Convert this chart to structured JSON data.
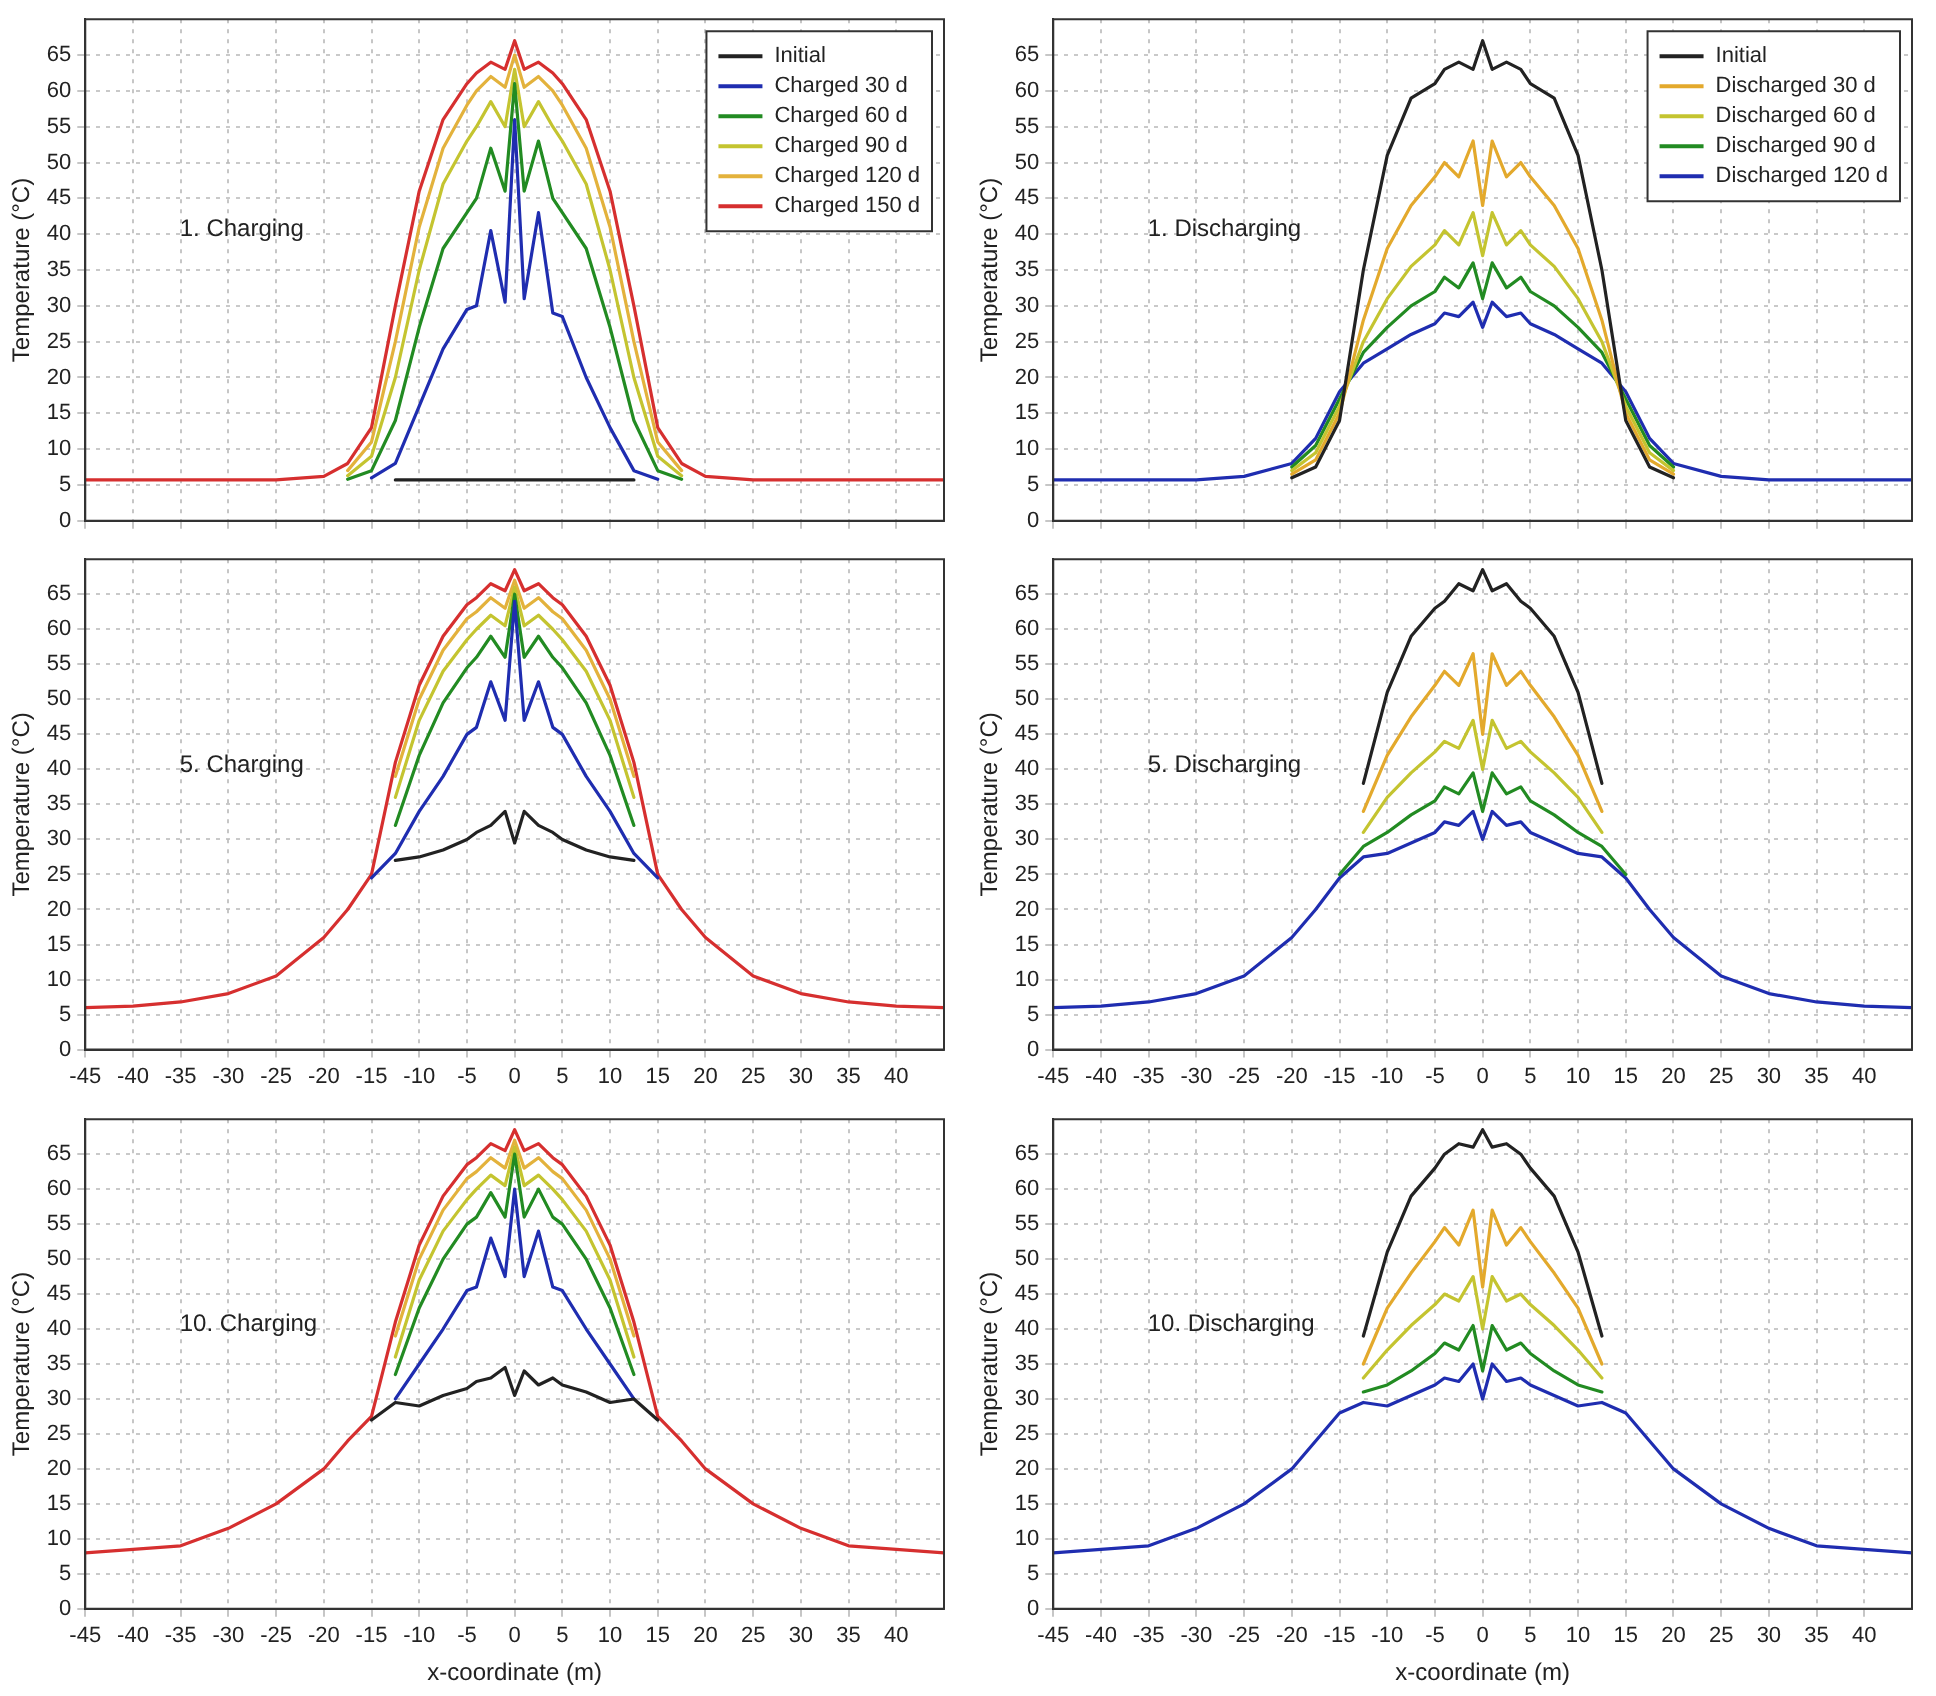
{
  "chart_data": [
    {
      "type": "line",
      "ylabel": "Temperature (°C)",
      "annotations": [
        "1. Charging"
      ],
      "xlim": [
        -45,
        45
      ],
      "ylim": [
        0,
        70
      ],
      "xticks": [
        -45,
        -40,
        -35,
        -30,
        -25,
        -20,
        -15,
        -10,
        -5,
        0,
        5,
        10,
        15,
        20,
        25,
        30,
        35,
        40
      ],
      "yticks": [
        0,
        5,
        10,
        15,
        20,
        25,
        30,
        35,
        40,
        45,
        50,
        55,
        60,
        65
      ],
      "grid": true,
      "legend": "top right",
      "tick_labels": "y",
      "x": [
        -45,
        -40,
        -35,
        -30,
        -25,
        -20,
        -17.5,
        -15,
        -12.5,
        -10,
        -7.5,
        -5,
        -4,
        -2.5,
        -1,
        0,
        1,
        2.5,
        4,
        5,
        7.5,
        10,
        12.5,
        15,
        17.5,
        20,
        25,
        30,
        35,
        40,
        45
      ],
      "series": [
        {
          "name": "Initial",
          "color": "#222222",
          "values": [
            null,
            null,
            null,
            null,
            null,
            null,
            null,
            null,
            5.7,
            5.7,
            5.7,
            5.7,
            5.7,
            5.7,
            5.7,
            5.7,
            5.7,
            5.7,
            5.7,
            5.7,
            5.7,
            5.7,
            5.7,
            null,
            null,
            null,
            null,
            null,
            null,
            null,
            null
          ]
        },
        {
          "name": "Charged 30 d",
          "color": "#1f2db0",
          "values": [
            null,
            null,
            null,
            null,
            null,
            null,
            null,
            6,
            8,
            16,
            24,
            29.5,
            30,
            40.5,
            30.5,
            56,
            31,
            43,
            29,
            28.5,
            20,
            13,
            7,
            5.8,
            null,
            null,
            null,
            null,
            null,
            null,
            null
          ]
        },
        {
          "name": "Charged 60 d",
          "color": "#228b22",
          "values": [
            null,
            null,
            null,
            null,
            null,
            null,
            5.8,
            7,
            14,
            27,
            38,
            43,
            45,
            52,
            46,
            61,
            46,
            53,
            45,
            43,
            38,
            27,
            14,
            7,
            5.8,
            null,
            null,
            null,
            null,
            null,
            null
          ]
        },
        {
          "name": "Charged 90 d",
          "color": "#c4c430",
          "values": [
            null,
            null,
            null,
            null,
            null,
            null,
            6.3,
            9,
            20,
            35,
            47,
            53,
            55,
            58.5,
            55,
            63,
            55,
            58.5,
            55,
            53,
            47,
            35,
            20,
            9,
            6.3,
            null,
            null,
            null,
            null,
            null,
            null
          ]
        },
        {
          "name": "Charged 120 d",
          "color": "#e3b23c",
          "values": [
            null,
            null,
            null,
            null,
            null,
            null,
            7,
            11,
            25,
            41,
            52,
            58,
            60,
            62,
            60.5,
            65,
            60.5,
            62,
            60,
            58,
            52,
            41,
            25,
            11,
            7,
            null,
            null,
            null,
            null,
            null,
            null
          ]
        },
        {
          "name": "Charged 150 d",
          "color": "#d62f2f",
          "values": [
            5.7,
            5.7,
            5.7,
            5.7,
            5.7,
            6.2,
            8,
            13,
            30,
            46,
            56,
            61,
            62.5,
            64,
            63,
            67,
            63,
            64,
            62.5,
            61,
            56,
            46,
            30,
            13,
            8,
            6.2,
            5.7,
            5.7,
            5.7,
            5.7,
            5.7
          ]
        }
      ]
    },
    {
      "type": "line",
      "ylabel": "Temperature (°C)",
      "annotations": [
        "1. Discharging"
      ],
      "xlim": [
        -45,
        45
      ],
      "ylim": [
        0,
        70
      ],
      "xticks": [
        -45,
        -40,
        -35,
        -30,
        -25,
        -20,
        -15,
        -10,
        -5,
        0,
        5,
        10,
        15,
        20,
        25,
        30,
        35,
        40
      ],
      "yticks": [
        0,
        5,
        10,
        15,
        20,
        25,
        30,
        35,
        40,
        45,
        50,
        55,
        60,
        65
      ],
      "grid": true,
      "legend": "top right",
      "tick_labels": "y",
      "x": [
        -45,
        -40,
        -35,
        -30,
        -25,
        -20,
        -17.5,
        -15,
        -12.5,
        -10,
        -7.5,
        -5,
        -4,
        -2.5,
        -1,
        0,
        1,
        2.5,
        4,
        5,
        7.5,
        10,
        12.5,
        15,
        17.5,
        20,
        25,
        30,
        35,
        40,
        45
      ],
      "series": [
        {
          "name": "Initial",
          "color": "#222222",
          "values": [
            null,
            null,
            null,
            null,
            null,
            6,
            7.5,
            14,
            35,
            51,
            59,
            61,
            63,
            64,
            63,
            67,
            63,
            64,
            63,
            61,
            59,
            51,
            35,
            14,
            7.5,
            6,
            null,
            null,
            null,
            null,
            null
          ]
        },
        {
          "name": "Discharged 30 d",
          "color": "#e3a92c",
          "values": [
            null,
            null,
            null,
            null,
            null,
            6.5,
            8.5,
            15,
            28,
            38,
            44,
            48,
            50,
            48,
            53,
            44,
            53,
            48,
            50,
            48,
            44,
            38,
            28,
            15,
            8.5,
            6.5,
            null,
            null,
            null,
            null,
            null
          ]
        },
        {
          "name": "Discharged 60 d",
          "color": "#c4c430",
          "values": [
            null,
            null,
            null,
            null,
            null,
            7,
            9.5,
            16,
            25,
            31,
            35.5,
            38.5,
            40.5,
            38.5,
            43,
            37,
            43,
            38.5,
            40.5,
            38.5,
            35.5,
            31,
            25,
            16,
            9.5,
            7,
            null,
            null,
            null,
            null,
            null
          ]
        },
        {
          "name": "Discharged 90 d",
          "color": "#228b22",
          "values": [
            null,
            null,
            null,
            null,
            null,
            7.5,
            10.5,
            17,
            23.5,
            27,
            30,
            32,
            34,
            32.5,
            36,
            31,
            36,
            32.5,
            34,
            32,
            30,
            27,
            23.5,
            17,
            10.5,
            7.5,
            null,
            null,
            null,
            null,
            null
          ]
        },
        {
          "name": "Discharged 120 d",
          "color": "#1f2db0",
          "values": [
            5.7,
            5.7,
            5.7,
            5.7,
            6.2,
            8,
            11.5,
            18,
            22,
            24,
            26,
            27.5,
            29,
            28.5,
            30.5,
            27,
            30.5,
            28.5,
            29,
            27.5,
            26,
            24,
            22,
            18,
            11.5,
            8,
            6.2,
            5.7,
            5.7,
            5.7,
            5.7
          ]
        }
      ]
    },
    {
      "type": "line",
      "ylabel": "Temperature (°C)",
      "annotations": [
        "5. Charging"
      ],
      "xlim": [
        -45,
        45
      ],
      "ylim": [
        0,
        70
      ],
      "xticks": [
        -45,
        -40,
        -35,
        -30,
        -25,
        -20,
        -15,
        -10,
        -5,
        0,
        5,
        10,
        15,
        20,
        25,
        30,
        35,
        40
      ],
      "yticks": [
        0,
        5,
        10,
        15,
        20,
        25,
        30,
        35,
        40,
        45,
        50,
        55,
        60,
        65
      ],
      "grid": true,
      "x": [
        -45,
        -40,
        -35,
        -30,
        -25,
        -20,
        -17.5,
        -15,
        -12.5,
        -10,
        -7.5,
        -5,
        -4,
        -2.5,
        -1,
        0,
        1,
        2.5,
        4,
        5,
        7.5,
        10,
        12.5,
        15,
        17.5,
        20,
        25,
        30,
        35,
        40,
        45
      ],
      "series": [
        {
          "color": "#222222",
          "values": [
            null,
            null,
            null,
            null,
            null,
            null,
            null,
            null,
            27,
            27.5,
            28.5,
            30,
            31,
            32,
            34,
            29.5,
            34,
            32,
            31,
            30,
            28.5,
            27.5,
            27,
            null,
            null,
            null,
            null,
            null,
            null,
            null,
            null
          ]
        },
        {
          "color": "#1f2db0",
          "values": [
            null,
            null,
            null,
            null,
            null,
            null,
            null,
            24.5,
            28,
            34,
            39,
            45,
            46,
            52.5,
            47,
            64,
            47,
            52.5,
            46,
            45,
            39,
            34,
            28,
            24.5,
            null,
            null,
            null,
            null,
            null,
            null,
            null
          ]
        },
        {
          "color": "#228b22",
          "values": [
            null,
            null,
            null,
            null,
            null,
            null,
            null,
            null,
            32,
            42,
            49.5,
            54.5,
            56,
            59,
            56,
            65,
            56,
            59,
            56,
            54.5,
            49.5,
            42,
            32,
            null,
            null,
            null,
            null,
            null,
            null,
            null,
            null
          ]
        },
        {
          "color": "#c4c430",
          "values": [
            null,
            null,
            null,
            null,
            null,
            null,
            null,
            null,
            36,
            47,
            54,
            58.5,
            60,
            62,
            60.5,
            66,
            60.5,
            62,
            60,
            58.5,
            54,
            47,
            36,
            null,
            null,
            null,
            null,
            null,
            null,
            null,
            null
          ]
        },
        {
          "color": "#e3b23c",
          "values": [
            null,
            null,
            null,
            null,
            null,
            null,
            null,
            null,
            39,
            50,
            57,
            61.5,
            62.5,
            64.5,
            63,
            67,
            63,
            64.5,
            62.5,
            61.5,
            57,
            50,
            39,
            null,
            null,
            null,
            null,
            null,
            null,
            null,
            null
          ]
        },
        {
          "color": "#d62f2f",
          "values": [
            6,
            6.2,
            6.8,
            8,
            10.5,
            16,
            20,
            25,
            41,
            52,
            59,
            63.5,
            64.5,
            66.5,
            65.5,
            68.5,
            65.5,
            66.5,
            64.5,
            63.5,
            59,
            52,
            41,
            25,
            20,
            16,
            10.5,
            8,
            6.8,
            6.2,
            6
          ]
        }
      ]
    },
    {
      "type": "line",
      "ylabel": "Temperature (°C)",
      "annotations": [
        "5. Discharging"
      ],
      "xlim": [
        -45,
        45
      ],
      "ylim": [
        0,
        70
      ],
      "xticks": [
        -45,
        -40,
        -35,
        -30,
        -25,
        -20,
        -15,
        -10,
        -5,
        0,
        5,
        10,
        15,
        20,
        25,
        30,
        35,
        40
      ],
      "yticks": [
        0,
        5,
        10,
        15,
        20,
        25,
        30,
        35,
        40,
        45,
        50,
        55,
        60,
        65
      ],
      "grid": true,
      "x": [
        -45,
        -40,
        -35,
        -30,
        -25,
        -20,
        -17.5,
        -15,
        -12.5,
        -10,
        -7.5,
        -5,
        -4,
        -2.5,
        -1,
        0,
        1,
        2.5,
        4,
        5,
        7.5,
        10,
        12.5,
        15,
        17.5,
        20,
        25,
        30,
        35,
        40,
        45
      ],
      "series": [
        {
          "color": "#222222",
          "values": [
            null,
            null,
            null,
            null,
            null,
            null,
            null,
            null,
            38,
            51,
            59,
            63,
            64,
            66.5,
            65.5,
            68.5,
            65.5,
            66.5,
            64,
            63,
            59,
            51,
            38,
            null,
            null,
            null,
            null,
            null,
            null,
            null,
            null
          ]
        },
        {
          "color": "#e3a92c",
          "values": [
            null,
            null,
            null,
            null,
            null,
            null,
            null,
            null,
            34,
            42,
            47.5,
            52,
            54,
            52,
            56.5,
            45,
            56.5,
            52,
            54,
            52,
            47.5,
            42,
            34,
            null,
            null,
            null,
            null,
            null,
            null,
            null,
            null
          ]
        },
        {
          "color": "#c4c430",
          "values": [
            null,
            null,
            null,
            null,
            null,
            null,
            null,
            null,
            31,
            36,
            39.5,
            42.5,
            44,
            43,
            47,
            40,
            47,
            43,
            44,
            42.5,
            39.5,
            36,
            31,
            null,
            null,
            null,
            null,
            null,
            null,
            null,
            null
          ]
        },
        {
          "color": "#228b22",
          "values": [
            null,
            null,
            null,
            null,
            null,
            null,
            null,
            25,
            29,
            31,
            33.5,
            35.5,
            37.5,
            36.5,
            39.5,
            34,
            39.5,
            36.5,
            37.5,
            35.5,
            33.5,
            31,
            29,
            25,
            null,
            null,
            null,
            null,
            null,
            null,
            null
          ]
        },
        {
          "color": "#1f2db0",
          "values": [
            6,
            6.2,
            6.8,
            8,
            10.5,
            16,
            20,
            24.5,
            27.5,
            28,
            29.5,
            31,
            32.5,
            32,
            34,
            30,
            34,
            32,
            32.5,
            31,
            29.5,
            28,
            27.5,
            24.5,
            20,
            16,
            10.5,
            8,
            6.8,
            6.2,
            6
          ]
        }
      ]
    },
    {
      "type": "line",
      "ylabel": "Temperature (°C)",
      "xlabel": "x-coordinate (m)",
      "annotations": [
        "10. Charging"
      ],
      "xlim": [
        -45,
        45
      ],
      "ylim": [
        0,
        70
      ],
      "xticks": [
        -45,
        -40,
        -35,
        -30,
        -25,
        -20,
        -15,
        -10,
        -5,
        0,
        5,
        10,
        15,
        20,
        25,
        30,
        35,
        40
      ],
      "yticks": [
        0,
        5,
        10,
        15,
        20,
        25,
        30,
        35,
        40,
        45,
        50,
        55,
        60,
        65
      ],
      "grid": true,
      "x": [
        -45,
        -40,
        -35,
        -30,
        -25,
        -20,
        -17.5,
        -15,
        -12.5,
        -10,
        -7.5,
        -5,
        -4,
        -2.5,
        -1,
        0,
        1,
        2.5,
        4,
        5,
        7.5,
        10,
        12.5,
        15,
        17.5,
        20,
        25,
        30,
        35,
        40,
        45
      ],
      "series": [
        {
          "color": "#222222",
          "values": [
            null,
            null,
            null,
            null,
            null,
            null,
            null,
            27,
            29.5,
            29,
            30.5,
            31.5,
            32.5,
            33,
            34.5,
            30.5,
            34,
            32,
            33,
            32,
            31,
            29.5,
            30,
            27,
            null,
            null,
            null,
            null,
            null,
            null,
            null
          ]
        },
        {
          "color": "#1f2db0",
          "values": [
            null,
            null,
            null,
            null,
            null,
            null,
            null,
            null,
            30,
            35,
            40,
            45.5,
            46,
            53,
            47.5,
            60,
            47.5,
            54,
            46,
            45.5,
            40,
            35,
            30,
            null,
            null,
            null,
            null,
            null,
            null,
            null,
            null
          ]
        },
        {
          "color": "#228b22",
          "values": [
            null,
            null,
            null,
            null,
            null,
            null,
            null,
            null,
            33.5,
            43,
            50,
            55,
            56,
            59.5,
            56,
            65,
            56,
            60,
            56,
            55,
            50,
            43,
            33.5,
            null,
            null,
            null,
            null,
            null,
            null,
            null,
            null
          ]
        },
        {
          "color": "#c4c430",
          "values": [
            null,
            null,
            null,
            null,
            null,
            null,
            null,
            null,
            36,
            47,
            54,
            58.5,
            60,
            62,
            60.5,
            66,
            60.5,
            62,
            60,
            58.5,
            54,
            47,
            36,
            null,
            null,
            null,
            null,
            null,
            null,
            null,
            null
          ]
        },
        {
          "color": "#e3b23c",
          "values": [
            null,
            null,
            null,
            null,
            null,
            null,
            null,
            null,
            39,
            50,
            57,
            61.5,
            62.5,
            64.5,
            63,
            67,
            63,
            64.5,
            62.5,
            61.5,
            57,
            50,
            39,
            null,
            null,
            null,
            null,
            null,
            null,
            null,
            null
          ]
        },
        {
          "color": "#d62f2f",
          "values": [
            8,
            8.5,
            9,
            11.5,
            15,
            20,
            24,
            27.5,
            41,
            52,
            59,
            63.5,
            64.5,
            66.5,
            65.5,
            68.5,
            65.5,
            66.5,
            64.5,
            63.5,
            59,
            52,
            41,
            27.5,
            24,
            20,
            15,
            11.5,
            9,
            8.5,
            8
          ]
        }
      ]
    },
    {
      "type": "line",
      "ylabel": "Temperature (°C)",
      "xlabel": "x-coordinate (m)",
      "annotations": [
        "10. Discharging"
      ],
      "xlim": [
        -45,
        45
      ],
      "ylim": [
        0,
        70
      ],
      "xticks": [
        -45,
        -40,
        -35,
        -30,
        -25,
        -20,
        -15,
        -10,
        -5,
        0,
        5,
        10,
        15,
        20,
        25,
        30,
        35,
        40
      ],
      "yticks": [
        0,
        5,
        10,
        15,
        20,
        25,
        30,
        35,
        40,
        45,
        50,
        55,
        60,
        65
      ],
      "grid": true,
      "x": [
        -45,
        -40,
        -35,
        -30,
        -25,
        -20,
        -17.5,
        -15,
        -12.5,
        -10,
        -7.5,
        -5,
        -4,
        -2.5,
        -1,
        0,
        1,
        2.5,
        4,
        5,
        7.5,
        10,
        12.5,
        15,
        17.5,
        20,
        25,
        30,
        35,
        40,
        45
      ],
      "series": [
        {
          "color": "#222222",
          "values": [
            null,
            null,
            null,
            null,
            null,
            null,
            null,
            null,
            39,
            51,
            59,
            63,
            65,
            66.5,
            66,
            68.5,
            66,
            66.5,
            65,
            63,
            59,
            51,
            39,
            null,
            null,
            null,
            null,
            null,
            null,
            null,
            null
          ]
        },
        {
          "color": "#e3a92c",
          "values": [
            null,
            null,
            null,
            null,
            null,
            null,
            null,
            null,
            35,
            43,
            48,
            52.5,
            54.5,
            52,
            57,
            46,
            57,
            52,
            54.5,
            52.5,
            48,
            43,
            35,
            null,
            null,
            null,
            null,
            null,
            null,
            null,
            null
          ]
        },
        {
          "color": "#c4c430",
          "values": [
            null,
            null,
            null,
            null,
            null,
            null,
            null,
            null,
            33,
            37,
            40.5,
            43.5,
            45,
            44,
            47.5,
            40,
            47.5,
            44,
            45,
            43.5,
            40.5,
            37,
            33,
            null,
            null,
            null,
            null,
            null,
            null,
            null,
            null
          ]
        },
        {
          "color": "#228b22",
          "values": [
            null,
            null,
            null,
            null,
            null,
            null,
            null,
            null,
            31,
            32,
            34,
            36.5,
            38,
            37,
            40.5,
            34,
            40.5,
            37,
            38,
            36.5,
            34,
            32,
            31,
            null,
            null,
            null,
            null,
            null,
            null,
            null,
            null
          ]
        },
        {
          "color": "#1f2db0",
          "values": [
            8,
            8.5,
            9,
            11.5,
            15,
            20,
            24,
            28,
            29.5,
            29,
            30.5,
            32,
            33,
            32.5,
            35,
            30,
            35,
            32.5,
            33,
            32,
            30.5,
            29,
            29.5,
            28,
            24,
            20,
            15,
            11.5,
            9,
            8.5,
            8
          ]
        }
      ]
    }
  ]
}
